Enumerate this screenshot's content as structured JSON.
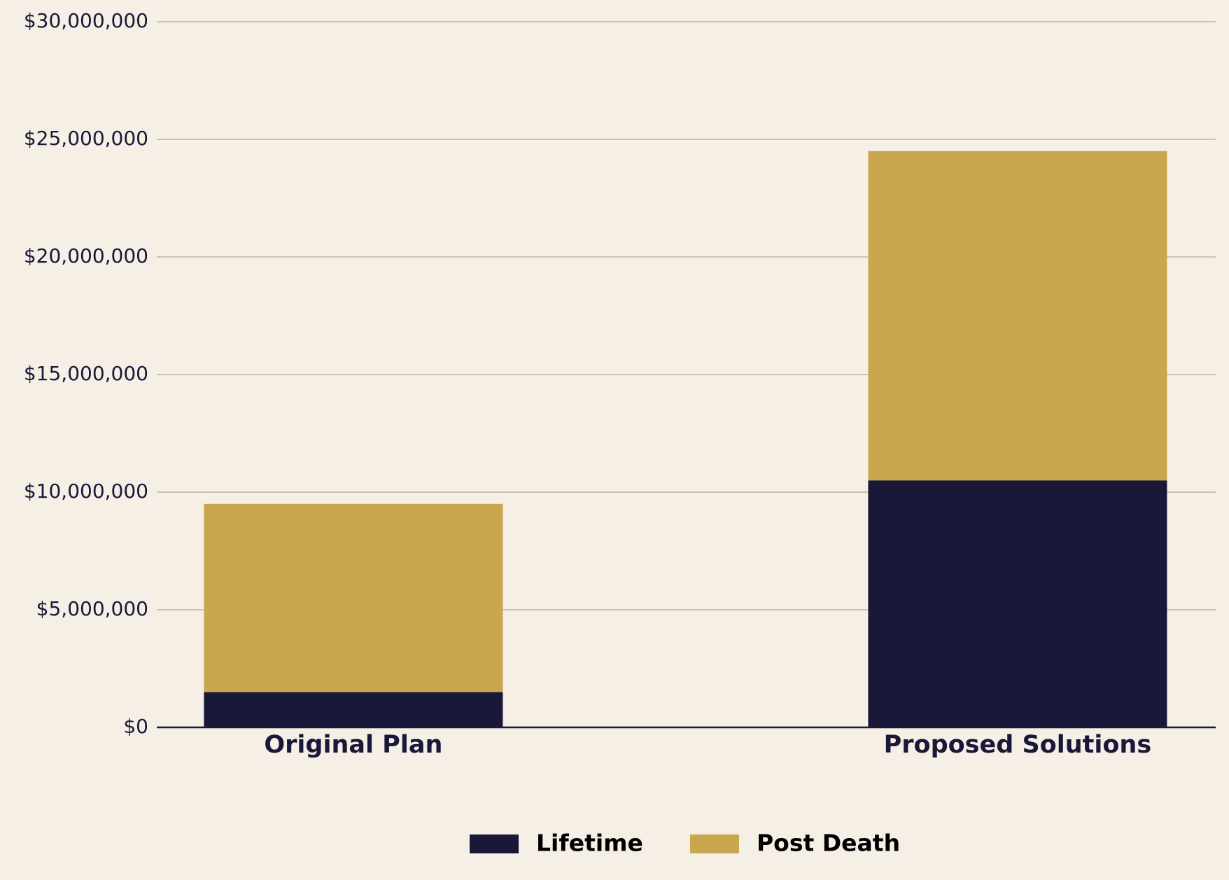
{
  "chart_data": {
    "type": "stacked_bar",
    "categories": [
      "Original Plan",
      "Proposed Solutions"
    ],
    "series": [
      {
        "name": "Lifetime",
        "color": "#1a1838",
        "values": [
          1500000,
          10500000
        ]
      },
      {
        "name": "Post Death",
        "color": "#c9a74e",
        "values": [
          8000000,
          14000000
        ]
      }
    ],
    "ylim": [
      0,
      30000000
    ],
    "yticks": [
      {
        "value": 0,
        "label": "$0"
      },
      {
        "value": 5000000,
        "label": "$5,000,000"
      },
      {
        "value": 10000000,
        "label": "$10,000,000"
      },
      {
        "value": 15000000,
        "label": "$15,000,000"
      },
      {
        "value": 20000000,
        "label": "$20,000,000"
      },
      {
        "value": 25000000,
        "label": "$25,000,000"
      },
      {
        "value": 30000000,
        "label": "$30,000,000"
      }
    ],
    "grid": true,
    "legend": "bottom"
  }
}
